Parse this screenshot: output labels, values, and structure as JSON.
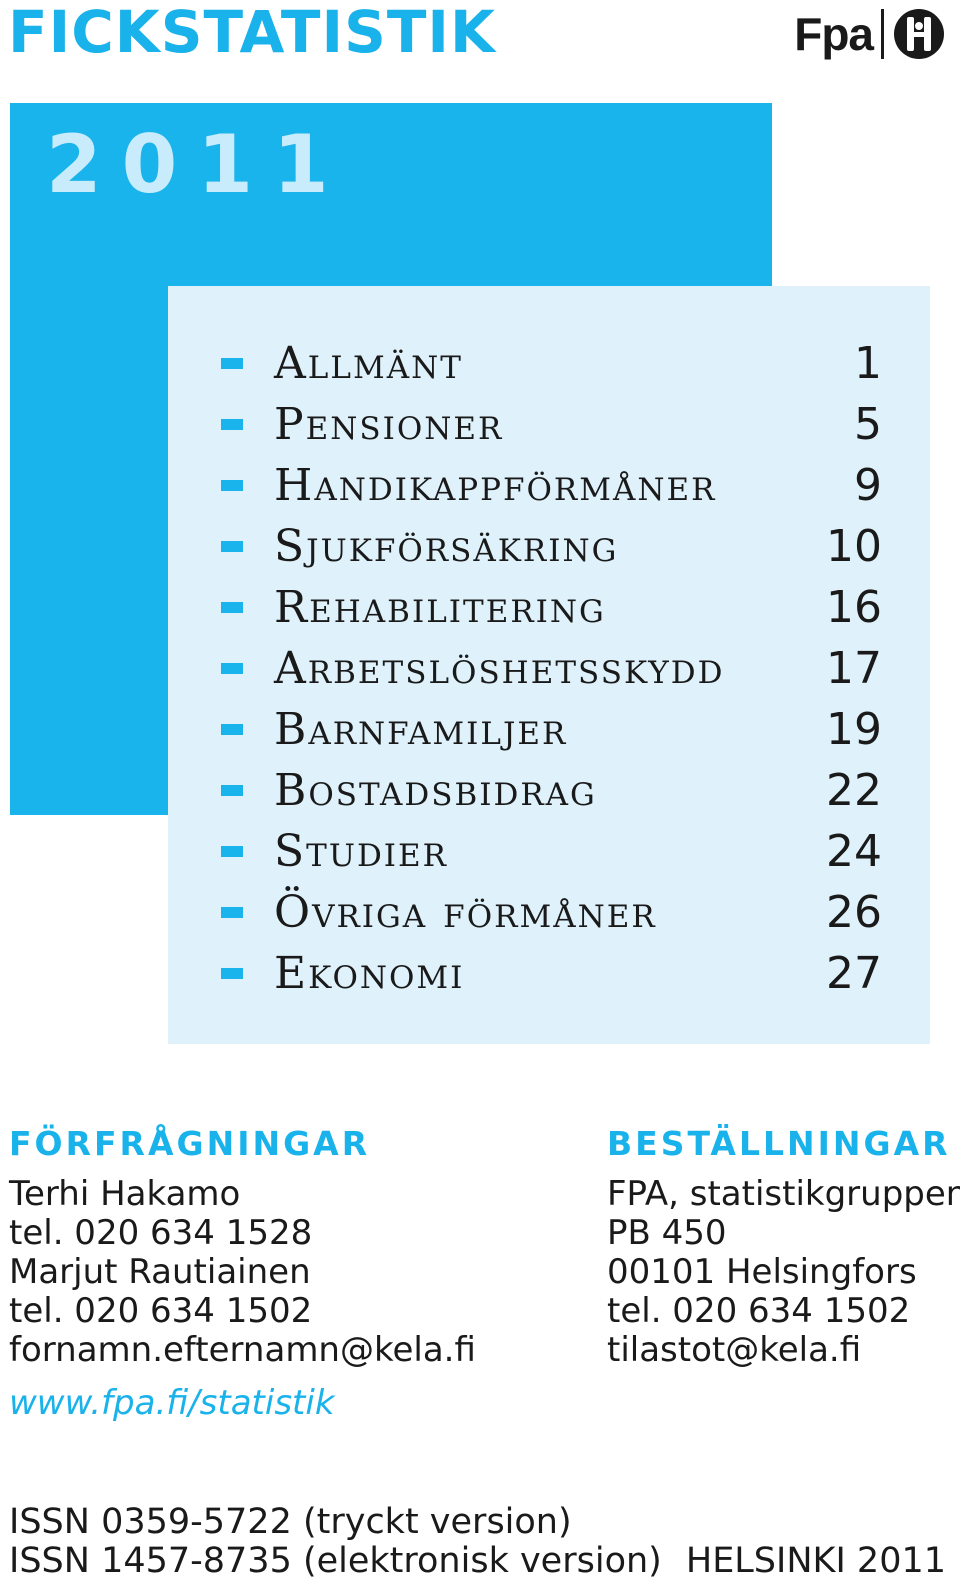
{
  "header": {
    "title": "FICKSTATISTIK",
    "logo_text": "Fpa"
  },
  "year": "2011",
  "toc": {
    "items": [
      {
        "label": "Allmänt",
        "page": "1"
      },
      {
        "label": "Pensioner",
        "page": "5"
      },
      {
        "label": "Handikappförmåner",
        "page": "9"
      },
      {
        "label": "Sjukförsäkring",
        "page": "10"
      },
      {
        "label": "Rehabilitering",
        "page": "16"
      },
      {
        "label": "Arbetslöshetsskydd",
        "page": "17"
      },
      {
        "label": "Barnfamiljer",
        "page": "19"
      },
      {
        "label": "Bostadsbidrag",
        "page": "22"
      },
      {
        "label": "Studier",
        "page": "24"
      },
      {
        "label": "Övriga förmåner",
        "page": "26"
      },
      {
        "label": "Ekonomi",
        "page": "27"
      }
    ]
  },
  "inquiries": {
    "heading": "FÖRFRÅGNINGAR",
    "lines": [
      "Terhi Hakamo",
      "tel. 020 634 1528",
      "Marjut Rautiainen",
      "tel. 020 634 1502",
      "fornamn.efternamn@kela.fi"
    ]
  },
  "orders": {
    "heading": "BESTÄLLNINGAR",
    "lines": [
      "FPA, statistikgruppen",
      "PB 450",
      "00101 Helsingfors",
      "tel. 020 634 1502",
      "tilastot@kela.fi"
    ]
  },
  "website": "www.fpa.fi/statistik",
  "footer": {
    "issn_print": "ISSN 0359-5722 (tryckt version)",
    "issn_electronic": "ISSN 1457-8735 (elektronisk version)",
    "place_year": "HELSINKI 2011"
  },
  "colors": {
    "accent": "#1ab4ec",
    "light_panel": "#dff2fb",
    "year_text": "#c8ecfb"
  }
}
